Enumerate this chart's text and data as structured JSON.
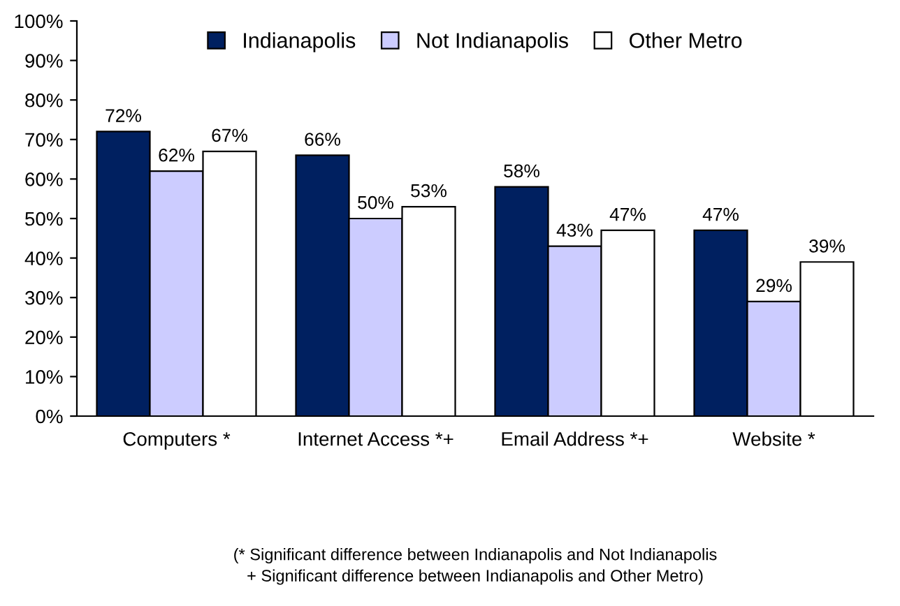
{
  "chart_data": {
    "type": "bar",
    "categories": [
      "Computers *",
      "Internet Access *+",
      "Email Address *+",
      "Website *"
    ],
    "series": [
      {
        "name": "Indianapolis",
        "color": "#002060",
        "values": [
          72,
          66,
          58,
          47
        ],
        "value_labels": [
          "72%",
          "66%",
          "58%",
          "47%"
        ]
      },
      {
        "name": "Not Indianapolis",
        "color": "#ccccff",
        "values": [
          62,
          50,
          43,
          29
        ],
        "value_labels": [
          "62%",
          "50%",
          "43%",
          "29%"
        ]
      },
      {
        "name": "Other Metro",
        "color": "#ffffff",
        "values": [
          67,
          53,
          47,
          39
        ],
        "value_labels": [
          "67%",
          "53%",
          "47%",
          "39%"
        ]
      }
    ],
    "ylim": [
      0,
      100
    ],
    "yticks": [
      {
        "value": 0,
        "label": "0%"
      },
      {
        "value": 10,
        "label": "10%"
      },
      {
        "value": 20,
        "label": "20%"
      },
      {
        "value": 30,
        "label": "30%"
      },
      {
        "value": 40,
        "label": "40%"
      },
      {
        "value": 50,
        "label": "50%"
      },
      {
        "value": 60,
        "label": "60%"
      },
      {
        "value": 70,
        "label": "70%"
      },
      {
        "value": 80,
        "label": "80%"
      },
      {
        "value": 90,
        "label": "90%"
      },
      {
        "value": 100,
        "label": "100%"
      }
    ],
    "legend": "top",
    "grid": false,
    "annotations": [
      "(* Significant difference between Indianapolis and Not Indianapolis\n+ Significant difference between Indianapolis and Other Metro)"
    ]
  }
}
